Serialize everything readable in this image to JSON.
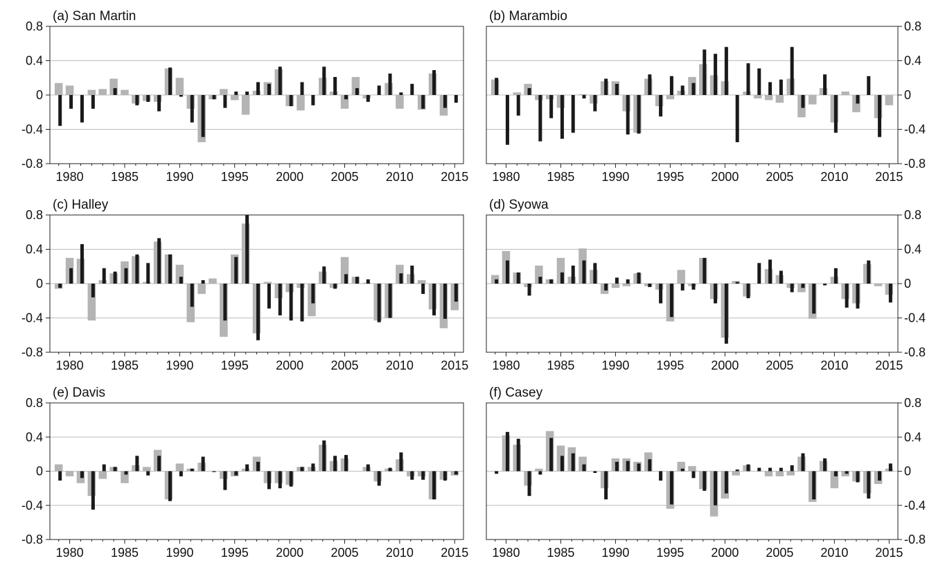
{
  "chart_data": [
    {
      "type": "bar",
      "title": "(a) San Martin",
      "xlabel": "",
      "ylabel": "",
      "x": [
        1979,
        1980,
        1981,
        1982,
        1983,
        1984,
        1985,
        1986,
        1987,
        1988,
        1989,
        1990,
        1991,
        1992,
        1993,
        1994,
        1995,
        1996,
        1997,
        1998,
        1999,
        2000,
        2001,
        2002,
        2003,
        2004,
        2005,
        2006,
        2007,
        2008,
        2009,
        2010,
        2011,
        2012,
        2013,
        2014,
        2015
      ],
      "series": [
        {
          "values": [
            0.14,
            0.11,
            0.0,
            0.06,
            0.07,
            0.19,
            0.06,
            -0.1,
            -0.07,
            -0.08,
            0.31,
            0.2,
            -0.16,
            -0.55,
            -0.05,
            0.07,
            -0.06,
            -0.23,
            0.05,
            0.15,
            0.3,
            -0.13,
            -0.18,
            0.0,
            0.2,
            0.04,
            -0.16,
            0.21,
            -0.04,
            0.0,
            0.14,
            -0.16,
            0.0,
            -0.17,
            0.25,
            -0.24,
            0.0
          ]
        },
        {
          "values": [
            -0.36,
            -0.16,
            -0.32,
            -0.16,
            0.0,
            0.08,
            0.0,
            -0.12,
            -0.08,
            -0.19,
            0.32,
            -0.02,
            -0.32,
            -0.49,
            -0.05,
            -0.15,
            0.04,
            0.04,
            0.15,
            0.13,
            0.33,
            -0.13,
            0.15,
            -0.12,
            0.33,
            0.21,
            -0.05,
            0.08,
            -0.08,
            0.11,
            0.25,
            0.03,
            0.13,
            -0.16,
            0.29,
            -0.15,
            -0.09
          ]
        }
      ],
      "xlim": [
        1978.2,
        2015.8
      ],
      "ylim": [
        -0.8,
        0.8
      ],
      "xticks": [
        "1980",
        "1985",
        "1990",
        "1995",
        "2000",
        "2005",
        "2010",
        "2015"
      ],
      "yticks": [
        "0.8",
        "0.4",
        "0",
        "-0.4",
        "-0.8"
      ],
      "grid": "horizontal",
      "colors": {
        "s0": "#b4b4b4",
        "s1": "#1a1a1a"
      }
    },
    {
      "type": "bar",
      "title": "(b) Marambio",
      "xlabel": "",
      "ylabel": "",
      "x": [
        1979,
        1980,
        1981,
        1982,
        1983,
        1984,
        1985,
        1986,
        1987,
        1988,
        1989,
        1990,
        1991,
        1992,
        1993,
        1994,
        1995,
        1996,
        1997,
        1998,
        1999,
        2000,
        2001,
        2002,
        2003,
        2004,
        2005,
        2006,
        2007,
        2008,
        2009,
        2010,
        2011,
        2012,
        2013,
        2014,
        2015
      ],
      "series": [
        {
          "values": [
            0.18,
            0.0,
            0.03,
            0.13,
            -0.06,
            -0.05,
            -0.15,
            0.0,
            0.01,
            -0.1,
            0.16,
            0.16,
            -0.19,
            -0.44,
            0.19,
            -0.13,
            -0.05,
            0.05,
            0.21,
            0.36,
            0.23,
            0.16,
            0.0,
            0.04,
            -0.04,
            -0.06,
            -0.09,
            0.19,
            -0.26,
            -0.11,
            0.08,
            -0.32,
            0.04,
            -0.2,
            0.0,
            -0.27,
            -0.12
          ]
        },
        {
          "values": [
            0.2,
            -0.58,
            -0.24,
            0.08,
            -0.54,
            -0.27,
            -0.51,
            -0.44,
            -0.04,
            -0.19,
            0.19,
            0.13,
            -0.46,
            -0.45,
            0.24,
            -0.25,
            0.22,
            0.11,
            0.14,
            0.53,
            0.48,
            0.56,
            -0.55,
            0.37,
            0.31,
            0.15,
            0.18,
            0.56,
            -0.15,
            0.0,
            0.24,
            -0.44,
            0.0,
            -0.1,
            0.22,
            -0.49,
            0.0
          ]
        }
      ],
      "xlim": [
        1978.2,
        2015.8
      ],
      "ylim": [
        -0.8,
        0.8
      ],
      "xticks": [
        "1980",
        "1985",
        "1990",
        "1995",
        "2000",
        "2005",
        "2010",
        "2015"
      ],
      "yticks": [
        "0.8",
        "0.4",
        "0",
        "-0.4",
        "-0.8"
      ],
      "grid": "horizontal",
      "colors": {
        "s0": "#b4b4b4",
        "s1": "#1a1a1a"
      }
    },
    {
      "type": "bar",
      "title": "(c) Halley",
      "xlabel": "",
      "ylabel": "",
      "x": [
        1979,
        1980,
        1981,
        1982,
        1983,
        1984,
        1985,
        1986,
        1987,
        1988,
        1989,
        1990,
        1991,
        1992,
        1993,
        1994,
        1995,
        1996,
        1997,
        1998,
        1999,
        2000,
        2001,
        2002,
        2003,
        2004,
        2005,
        2006,
        2007,
        2008,
        2009,
        2010,
        2011,
        2012,
        2013,
        2014,
        2015
      ],
      "series": [
        {
          "values": [
            -0.06,
            0.3,
            0.29,
            -0.43,
            0.04,
            0.12,
            0.26,
            0.32,
            0.02,
            0.49,
            0.34,
            0.22,
            -0.45,
            -0.12,
            0.06,
            -0.62,
            0.34,
            0.7,
            -0.58,
            0.02,
            -0.17,
            -0.1,
            -0.05,
            -0.38,
            0.14,
            -0.05,
            0.31,
            0.08,
            0.01,
            -0.43,
            -0.4,
            0.22,
            0.11,
            0.04,
            -0.3,
            -0.52,
            -0.31
          ]
        },
        {
          "values": [
            -0.05,
            0.18,
            0.46,
            -0.16,
            0.18,
            0.14,
            0.18,
            0.34,
            0.24,
            0.53,
            0.34,
            0.08,
            -0.27,
            0.04,
            0.0,
            -0.43,
            0.31,
            0.8,
            -0.66,
            -0.29,
            -0.37,
            -0.43,
            -0.44,
            -0.23,
            0.2,
            -0.06,
            0.11,
            0.08,
            0.05,
            -0.45,
            -0.4,
            0.12,
            0.21,
            -0.12,
            -0.37,
            -0.41,
            -0.21
          ]
        }
      ],
      "xlim": [
        1978.2,
        2015.8
      ],
      "ylim": [
        -0.8,
        0.8
      ],
      "xticks": [
        "1980",
        "1985",
        "1990",
        "1995",
        "2000",
        "2005",
        "2010",
        "2015"
      ],
      "yticks": [
        "0.8",
        "0.4",
        "0",
        "-0.4",
        "-0.8"
      ],
      "grid": "horizontal",
      "colors": {
        "s0": "#b4b4b4",
        "s1": "#1a1a1a"
      }
    },
    {
      "type": "bar",
      "title": "(d) Syowa",
      "xlabel": "",
      "ylabel": "",
      "x": [
        1979,
        1980,
        1981,
        1982,
        1983,
        1984,
        1985,
        1986,
        1987,
        1988,
        1989,
        1990,
        1991,
        1992,
        1993,
        1994,
        1995,
        1996,
        1997,
        1998,
        1999,
        2000,
        2001,
        2002,
        2003,
        2004,
        2005,
        2006,
        2007,
        2008,
        2009,
        2010,
        2011,
        2012,
        2013,
        2014,
        2015
      ],
      "series": [
        {
          "values": [
            0.1,
            0.38,
            0.13,
            -0.04,
            0.21,
            0.05,
            0.3,
            0.08,
            0.41,
            0.16,
            -0.12,
            -0.05,
            -0.03,
            0.12,
            -0.03,
            -0.07,
            -0.44,
            0.16,
            -0.03,
            0.3,
            -0.18,
            -0.63,
            0.03,
            -0.15,
            0.0,
            0.17,
            0.1,
            -0.05,
            -0.1,
            -0.41,
            0.0,
            0.08,
            -0.18,
            -0.23,
            0.23,
            -0.03,
            -0.13
          ]
        },
        {
          "values": [
            0.05,
            0.27,
            0.13,
            -0.14,
            0.08,
            0.05,
            0.13,
            0.21,
            0.27,
            0.24,
            -0.08,
            0.07,
            0.05,
            0.13,
            -0.04,
            -0.23,
            -0.39,
            -0.08,
            -0.07,
            0.3,
            -0.23,
            -0.7,
            0.02,
            -0.17,
            0.24,
            0.28,
            0.15,
            -0.1,
            -0.05,
            -0.35,
            -0.02,
            0.18,
            -0.28,
            -0.29,
            0.27,
            0.0,
            -0.22
          ]
        }
      ],
      "xlim": [
        1978.2,
        2015.8
      ],
      "ylim": [
        -0.8,
        0.8
      ],
      "xticks": [
        "1980",
        "1985",
        "1990",
        "1995",
        "2000",
        "2005",
        "2010",
        "2015"
      ],
      "yticks": [
        "0.8",
        "0.4",
        "0",
        "-0.4",
        "-0.8"
      ],
      "grid": "horizontal",
      "colors": {
        "s0": "#b4b4b4",
        "s1": "#1a1a1a"
      }
    },
    {
      "type": "bar",
      "title": "(e) Davis",
      "xlabel": "",
      "ylabel": "",
      "x": [
        1979,
        1980,
        1981,
        1982,
        1983,
        1984,
        1985,
        1986,
        1987,
        1988,
        1989,
        1990,
        1991,
        1992,
        1993,
        1994,
        1995,
        1996,
        1997,
        1998,
        1999,
        2000,
        2001,
        2002,
        2003,
        2004,
        2005,
        2006,
        2007,
        2008,
        2009,
        2010,
        2011,
        2012,
        2013,
        2014,
        2015
      ],
      "series": [
        {
          "values": [
            0.08,
            -0.06,
            -0.14,
            -0.29,
            -0.09,
            0.05,
            -0.14,
            0.07,
            0.05,
            0.25,
            -0.33,
            0.09,
            0.03,
            0.1,
            0.0,
            -0.09,
            -0.06,
            0.03,
            0.17,
            -0.14,
            -0.14,
            -0.16,
            0.05,
            0.05,
            0.31,
            0.12,
            0.15,
            0.0,
            0.05,
            -0.12,
            0.03,
            0.14,
            -0.06,
            -0.06,
            -0.33,
            -0.1,
            -0.05
          ]
        },
        {
          "values": [
            -0.11,
            0.0,
            -0.08,
            -0.45,
            0.08,
            0.05,
            -0.04,
            0.18,
            -0.05,
            0.18,
            -0.35,
            -0.06,
            0.03,
            0.17,
            -0.01,
            -0.22,
            -0.05,
            0.08,
            0.11,
            -0.21,
            -0.2,
            -0.18,
            0.05,
            0.09,
            0.36,
            0.18,
            0.19,
            0.0,
            0.08,
            -0.17,
            0.04,
            0.22,
            -0.1,
            -0.1,
            -0.33,
            -0.11,
            -0.04
          ]
        }
      ],
      "xlim": [
        1978.2,
        2015.8
      ],
      "ylim": [
        -0.8,
        0.8
      ],
      "xticks": [
        "1980",
        "1985",
        "1990",
        "1995",
        "2000",
        "2005",
        "2010",
        "2015"
      ],
      "yticks": [
        "0.8",
        "0.4",
        "0",
        "-0.4",
        "-0.8"
      ],
      "grid": "horizontal",
      "colors": {
        "s0": "#b4b4b4",
        "s1": "#1a1a1a"
      }
    },
    {
      "type": "bar",
      "title": "(f) Casey",
      "xlabel": "",
      "ylabel": "",
      "x": [
        1979,
        1980,
        1981,
        1982,
        1983,
        1984,
        1985,
        1986,
        1987,
        1988,
        1989,
        1990,
        1991,
        1992,
        1993,
        1994,
        1995,
        1996,
        1997,
        1998,
        1999,
        2000,
        2001,
        2002,
        2003,
        2004,
        2005,
        2006,
        2007,
        2008,
        2009,
        2010,
        2011,
        2012,
        2013,
        2014,
        2015
      ],
      "series": [
        {
          "values": [
            0.0,
            0.42,
            0.31,
            -0.17,
            0.03,
            0.47,
            0.3,
            0.28,
            0.17,
            0.0,
            -0.2,
            0.15,
            0.15,
            0.11,
            0.22,
            0.0,
            -0.44,
            0.11,
            0.06,
            -0.21,
            -0.53,
            -0.32,
            -0.05,
            0.07,
            0.0,
            -0.06,
            -0.06,
            -0.05,
            0.17,
            -0.36,
            0.12,
            -0.2,
            -0.06,
            -0.12,
            -0.26,
            -0.15,
            0.03
          ]
        },
        {
          "values": [
            -0.03,
            0.46,
            0.38,
            -0.29,
            -0.04,
            0.39,
            0.18,
            0.21,
            0.08,
            -0.02,
            -0.33,
            0.11,
            0.12,
            0.09,
            0.14,
            -0.11,
            -0.39,
            0.03,
            -0.08,
            -0.23,
            -0.4,
            -0.26,
            0.02,
            0.08,
            0.04,
            0.04,
            0.04,
            0.07,
            0.21,
            -0.33,
            0.15,
            -0.06,
            -0.03,
            -0.13,
            -0.32,
            -0.11,
            0.09
          ]
        }
      ],
      "xlim": [
        1978.2,
        2015.8
      ],
      "ylim": [
        -0.8,
        0.8
      ],
      "xticks": [
        "1980",
        "1985",
        "1990",
        "1995",
        "2000",
        "2005",
        "2010",
        "2015"
      ],
      "yticks": [
        "0.8",
        "0.4",
        "0",
        "-0.4",
        "-0.8"
      ],
      "grid": "horizontal",
      "colors": {
        "s0": "#b4b4b4",
        "s1": "#1a1a1a"
      }
    }
  ]
}
